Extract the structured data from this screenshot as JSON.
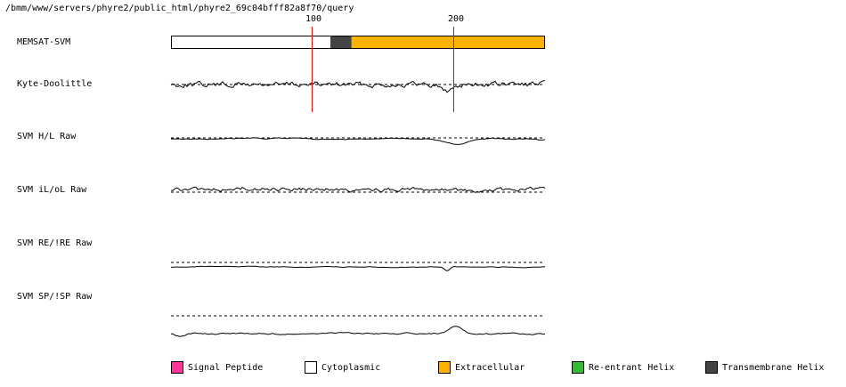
{
  "header": {
    "path": "/bmm/www/servers/phyre2/public_html/phyre2_69c04bfff82a8f70/query"
  },
  "axis": {
    "seq_length": 265,
    "ticks": [
      {
        "value": 100,
        "label": "100"
      },
      {
        "value": 200,
        "label": "200"
      }
    ]
  },
  "rows": [
    {
      "key": "memsat",
      "label": "MEMSAT-SVM"
    },
    {
      "key": "kyte",
      "label": "Kyte-Doolittle"
    },
    {
      "key": "hl",
      "label": "SVM H/L Raw"
    },
    {
      "key": "iloL",
      "label": "SVM iL/oL Raw"
    },
    {
      "key": "re",
      "label": "SVM RE/!RE Raw"
    },
    {
      "key": "sp",
      "label": "SVM SP/!SP Raw"
    }
  ],
  "topology": [
    {
      "start": 1,
      "end": 113,
      "type": "cytoplasmic"
    },
    {
      "start": 114,
      "end": 128,
      "type": "transmembrane"
    },
    {
      "start": 129,
      "end": 265,
      "type": "extracellular"
    }
  ],
  "legend": [
    {
      "key": "signal",
      "label": "Signal Peptide",
      "color": "#ff3399"
    },
    {
      "key": "cytoplasmic",
      "label": "Cytoplasmic",
      "color": "#ffffff"
    },
    {
      "key": "extracellular",
      "label": "Extracellular",
      "color": "#ffb300"
    },
    {
      "key": "reentrant",
      "label": "Re-entrant Helix",
      "color": "#33bb33"
    },
    {
      "key": "transmembrane",
      "label": "Transmembrane Helix",
      "color": "#444444"
    }
  ],
  "colors": {
    "tick_line": "#ff0000",
    "trace": "#000000",
    "threshold": "#000000"
  }
}
